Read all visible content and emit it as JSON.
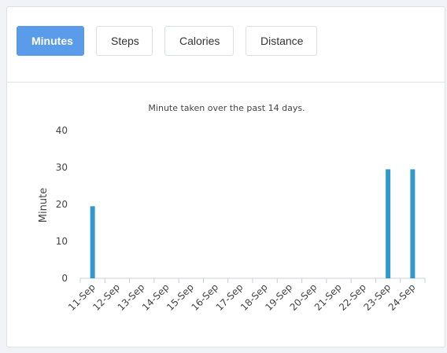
{
  "tabs": [
    {
      "label": "Minutes",
      "active": true
    },
    {
      "label": "Steps",
      "active": false
    },
    {
      "label": "Calories",
      "active": false
    },
    {
      "label": "Distance",
      "active": false
    }
  ],
  "colors": {
    "accent": "#5a9ce9",
    "bar": "#3399cc"
  },
  "chart_data": {
    "type": "bar",
    "title": "Minute taken over the past 14 days.",
    "xlabel": "",
    "ylabel": "Minute",
    "ylim": [
      0,
      40
    ],
    "yticks": [
      0,
      10,
      20,
      30,
      40
    ],
    "grid": false,
    "categories": [
      "11-Sep",
      "12-Sep",
      "13-Sep",
      "14-Sep",
      "15-Sep",
      "16-Sep",
      "17-Sep",
      "18-Sep",
      "19-Sep",
      "20-Sep",
      "21-Sep",
      "22-Sep",
      "23-Sep",
      "24-Sep"
    ],
    "values": [
      19.5,
      0,
      0,
      0,
      0,
      0,
      0,
      0,
      0,
      0,
      0,
      0,
      29.5,
      29.5
    ]
  }
}
